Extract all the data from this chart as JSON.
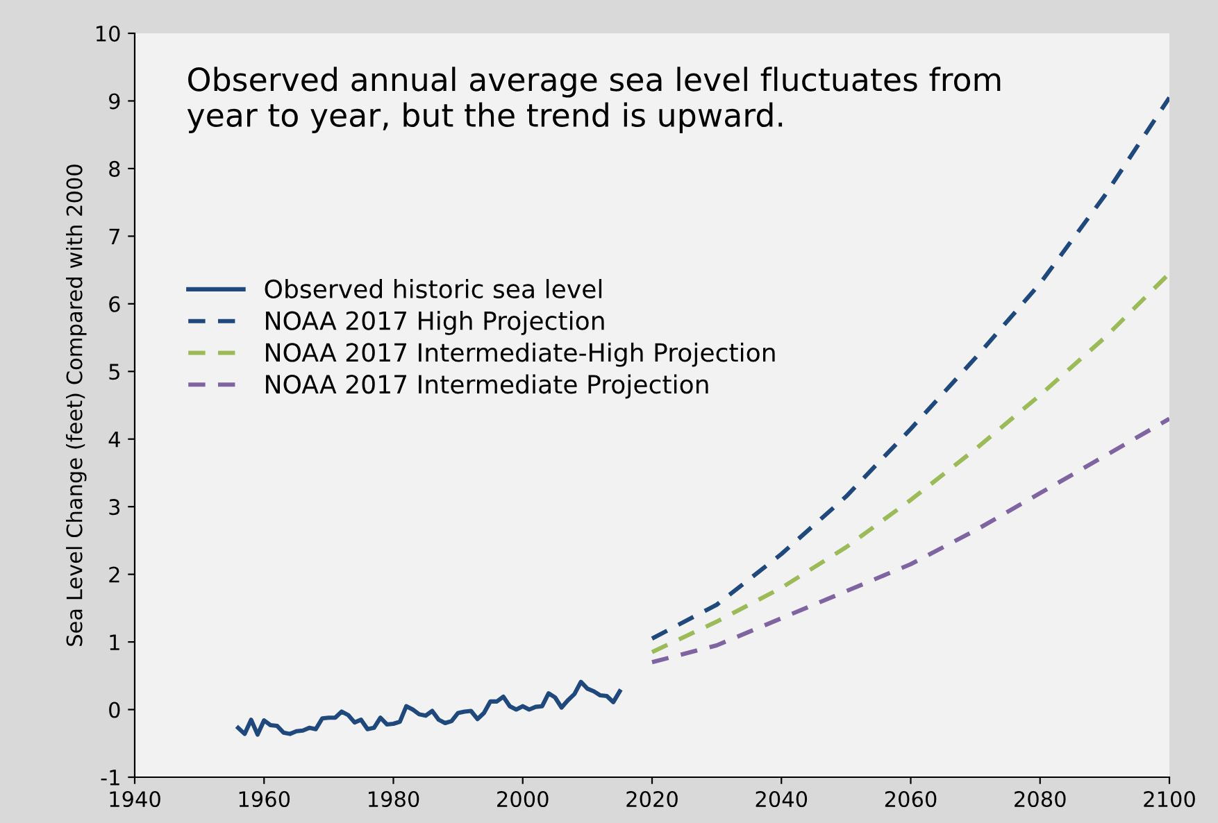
{
  "chart_data": {
    "type": "line",
    "title": "Observed annual average sea level fluctuates from year to year, but the trend is upward.",
    "ylabel": "Sea Level Change (feet) Compared with 2000",
    "xlim": [
      1940,
      2100
    ],
    "xticks": [
      1940,
      1960,
      1980,
      2000,
      2020,
      2040,
      2060,
      2080,
      2100
    ],
    "ylim": [
      -1,
      10
    ],
    "yticks": [
      -1,
      0,
      1,
      2,
      3,
      4,
      5,
      6,
      7,
      8,
      9,
      10
    ],
    "grid": false,
    "legend": "top left",
    "series": [
      {
        "name": "Observed historic sea level",
        "color": "#1f497d",
        "line_style": "solid",
        "x": [
          1956,
          1957,
          1958,
          1959,
          1960,
          1961,
          1962,
          1963,
          1964,
          1965,
          1966,
          1967,
          1968,
          1969,
          1970,
          1971,
          1972,
          1973,
          1974,
          1975,
          1976,
          1977,
          1978,
          1979,
          1980,
          1981,
          1982,
          1983,
          1984,
          1985,
          1986,
          1987,
          1988,
          1989,
          1990,
          1991,
          1992,
          1993,
          1994,
          1995,
          1996,
          1997,
          1998,
          1999,
          2000,
          2001,
          2002,
          2003,
          2004,
          2005,
          2006,
          2007,
          2008,
          2009,
          2010,
          2011,
          2012,
          2013,
          2014,
          2015
        ],
        "values": [
          -0.27,
          -0.36,
          -0.15,
          -0.37,
          -0.16,
          -0.23,
          -0.24,
          -0.34,
          -0.36,
          -0.32,
          -0.31,
          -0.27,
          -0.29,
          -0.13,
          -0.12,
          -0.12,
          -0.03,
          -0.08,
          -0.19,
          -0.15,
          -0.29,
          -0.27,
          -0.12,
          -0.22,
          -0.21,
          -0.18,
          0.05,
          0.0,
          -0.07,
          -0.09,
          -0.02,
          -0.15,
          -0.2,
          -0.17,
          -0.05,
          -0.03,
          -0.02,
          -0.14,
          -0.05,
          0.12,
          0.12,
          0.19,
          0.05,
          0.0,
          0.05,
          0.0,
          0.04,
          0.05,
          0.24,
          0.18,
          0.03,
          0.14,
          0.23,
          0.41,
          0.31,
          0.27,
          0.21,
          0.2,
          0.11,
          0.27
        ]
      },
      {
        "name": "NOAA 2017 High Projection",
        "color": "#1f497d",
        "line_style": "dashed",
        "x": [
          2020,
          2030,
          2040,
          2050,
          2060,
          2070,
          2080,
          2090,
          2100
        ],
        "values": [
          1.05,
          1.55,
          2.3,
          3.15,
          4.15,
          5.2,
          6.3,
          7.6,
          9.05
        ]
      },
      {
        "name": "NOAA 2017 Intermediate-High Projection",
        "color": "#9bbb59",
        "line_style": "dashed",
        "x": [
          2020,
          2030,
          2040,
          2050,
          2060,
          2070,
          2080,
          2090,
          2100
        ],
        "values": [
          0.85,
          1.3,
          1.8,
          2.4,
          3.1,
          3.85,
          4.65,
          5.5,
          6.45
        ]
      },
      {
        "name": "NOAA 2017 Intermediate Projection",
        "color": "#8064a2",
        "line_style": "dashed",
        "x": [
          2020,
          2030,
          2040,
          2050,
          2060,
          2070,
          2080,
          2090,
          2100
        ],
        "values": [
          0.7,
          0.95,
          1.35,
          1.75,
          2.15,
          2.65,
          3.2,
          3.75,
          4.3
        ]
      }
    ]
  }
}
